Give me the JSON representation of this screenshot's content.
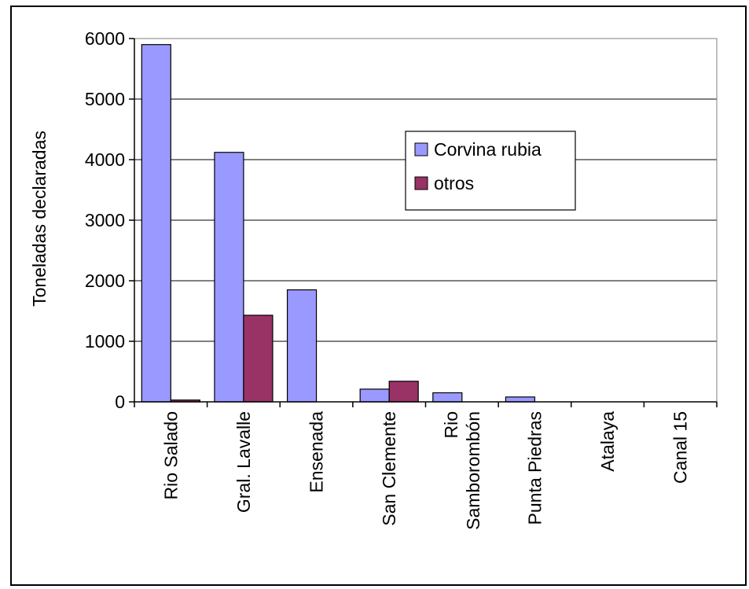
{
  "chart_data": {
    "type": "bar",
    "ylabel": "Toneladas declaradas",
    "xlabel": "",
    "ylim": [
      0,
      6000
    ],
    "yticks": [
      0,
      1000,
      2000,
      3000,
      4000,
      5000,
      6000
    ],
    "grid": true,
    "legend_position": "top-right",
    "categories": [
      [
        "Rio Salado"
      ],
      [
        "Gral. Lavalle"
      ],
      [
        "Ensenada"
      ],
      [
        "San Clemente"
      ],
      [
        "Rio",
        "Samborombón"
      ],
      [
        "Punta Piedras"
      ],
      [
        "Atalaya"
      ],
      [
        "Canal 15"
      ]
    ],
    "series": [
      {
        "name": "Corvina rubia",
        "color": "#9999ff",
        "values": [
          5900,
          4120,
          1850,
          210,
          150,
          80,
          0,
          0
        ]
      },
      {
        "name": "otros",
        "color": "#993366",
        "values": [
          30,
          1430,
          0,
          340,
          0,
          0,
          0,
          0
        ]
      }
    ]
  }
}
